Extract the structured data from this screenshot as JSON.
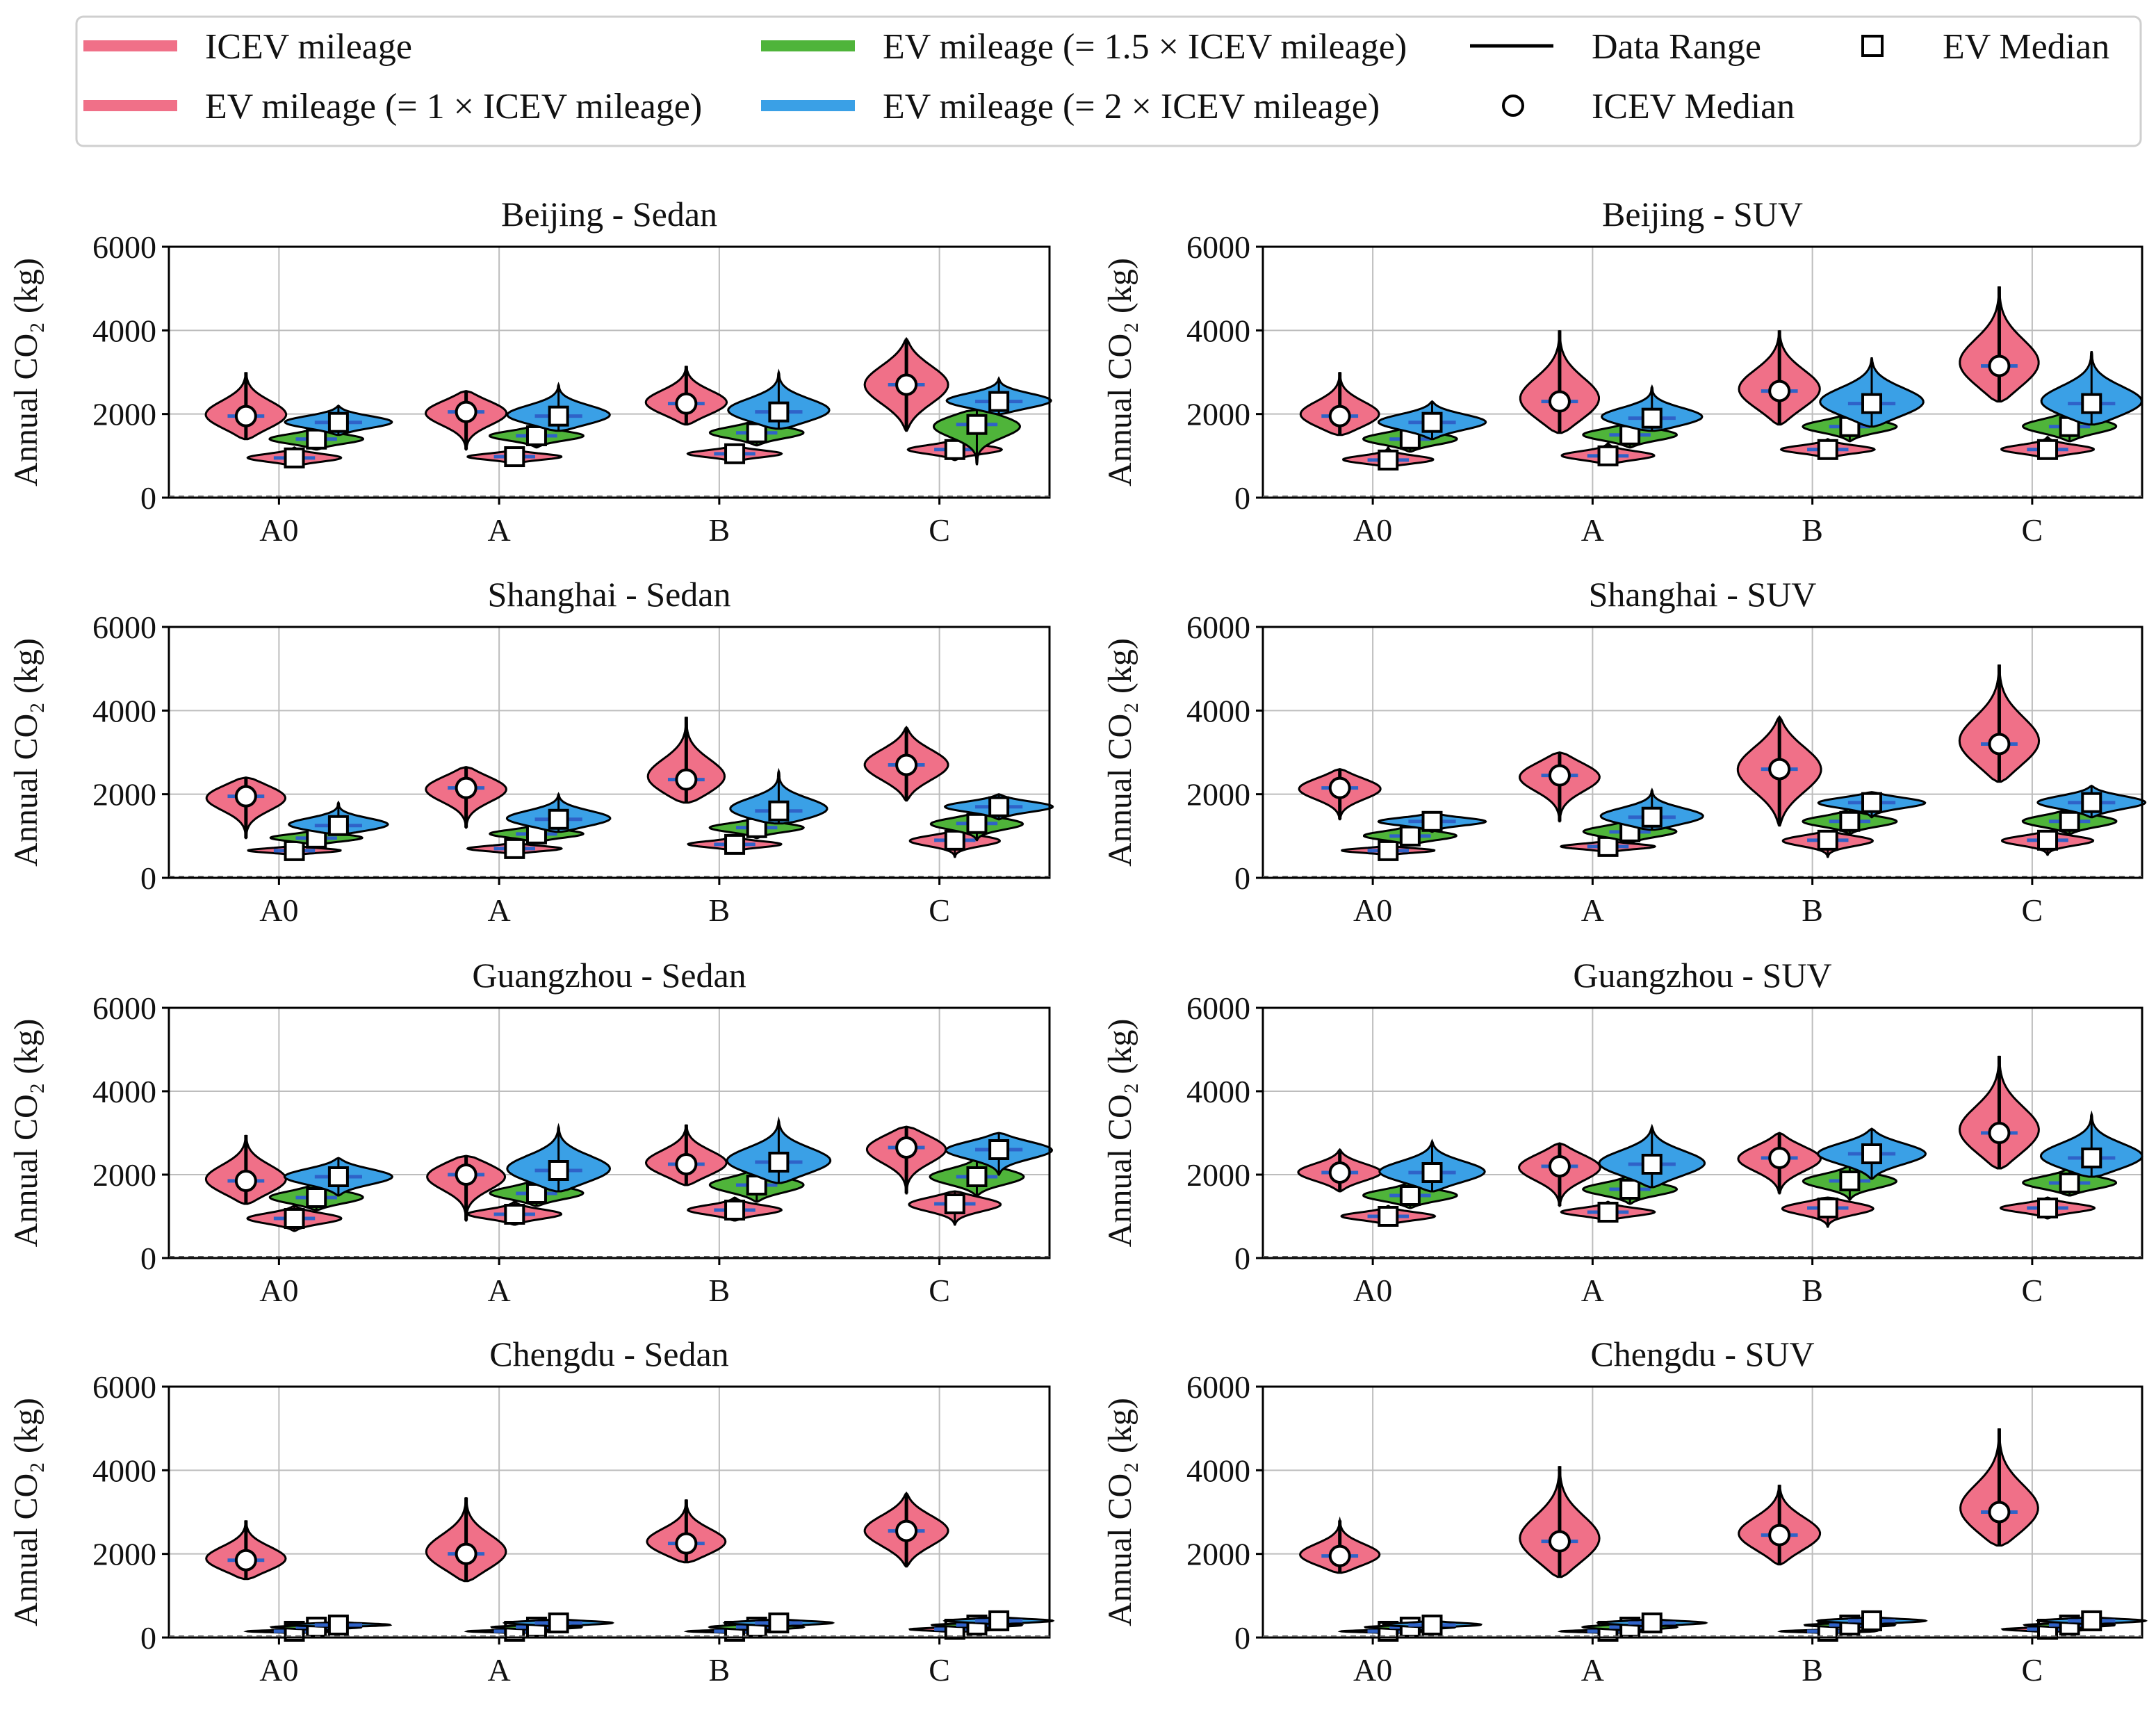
{
  "colors": {
    "icev": "#f07088",
    "ev1": "#f07088",
    "ev15": "#4fb43a",
    "ev2": "#3aa0e6",
    "median_line": "#2f62c8",
    "grid": "#bdbdbd"
  },
  "legend": {
    "items": [
      {
        "key": "icev",
        "label": "ICEV mileage",
        "kind": "patch",
        "color": "#f07088"
      },
      {
        "key": "ev1",
        "label": "EV mileage (= 1 × ICEV mileage)",
        "kind": "patch",
        "color": "#f07088"
      },
      {
        "key": "ev15",
        "label": "EV mileage (= 1.5 × ICEV mileage)",
        "kind": "patch",
        "color": "#4fb43a"
      },
      {
        "key": "ev2",
        "label": "EV mileage (= 2 × ICEV mileage)",
        "kind": "patch",
        "color": "#3aa0e6"
      },
      {
        "key": "range",
        "label": "Data Range",
        "kind": "line"
      },
      {
        "key": "icev_median",
        "label": "ICEV Median",
        "kind": "circle"
      },
      {
        "key": "ev_median",
        "label": "EV Median",
        "kind": "square"
      }
    ]
  },
  "chart_data": [
    {
      "type": "violin",
      "title": "Beijing - Sedan",
      "ylabel": "Annual CO₂ (kg)",
      "ylim": [
        0,
        6000
      ],
      "yticks": [
        0,
        2000,
        4000,
        6000
      ],
      "categories": [
        "A0",
        "A",
        "B",
        "C"
      ],
      "grid": true,
      "series": [
        {
          "name": "ICEV mileage",
          "medians": [
            1950,
            2050,
            2250,
            2700
          ],
          "ranges": [
            [
              1400,
              3000
            ],
            [
              1150,
              2550
            ],
            [
              1750,
              3150
            ],
            [
              1600,
              3800
            ]
          ]
        },
        {
          "name": "EV mileage (= 1 × ICEV mileage)",
          "medians": [
            950,
            980,
            1050,
            1150
          ],
          "ranges": [
            [
              750,
              1200
            ],
            [
              800,
              1150
            ],
            [
              850,
              1250
            ],
            [
              900,
              1400
            ]
          ]
        },
        {
          "name": "EV mileage (= 1.5 × ICEV mileage)",
          "medians": [
            1400,
            1480,
            1550,
            1750
          ],
          "ranges": [
            [
              1150,
              1700
            ],
            [
              1200,
              1750
            ],
            [
              1250,
              1900
            ],
            [
              800,
              2100
            ]
          ]
        },
        {
          "name": "EV mileage (= 2 × ICEV mileage)",
          "medians": [
            1800,
            1950,
            2050,
            2300
          ],
          "ranges": [
            [
              1500,
              2200
            ],
            [
              1600,
              2700
            ],
            [
              1650,
              3000
            ],
            [
              2000,
              2850
            ]
          ]
        }
      ]
    },
    {
      "type": "violin",
      "title": "Beijing - SUV",
      "ylabel": "Annual CO₂ (kg)",
      "ylim": [
        0,
        6000
      ],
      "yticks": [
        0,
        2000,
        4000,
        6000
      ],
      "categories": [
        "A0",
        "A",
        "B",
        "C"
      ],
      "grid": true,
      "series": [
        {
          "name": "ICEV mileage",
          "medians": [
            1950,
            2300,
            2550,
            3150
          ],
          "ranges": [
            [
              1500,
              3000
            ],
            [
              1550,
              4000
            ],
            [
              1750,
              4000
            ],
            [
              2300,
              5050
            ]
          ]
        },
        {
          "name": "EV mileage (= 1 × ICEV mileage)",
          "medians": [
            900,
            1000,
            1150,
            1150
          ],
          "ranges": [
            [
              750,
              1200
            ],
            [
              800,
              1300
            ],
            [
              950,
              1400
            ],
            [
              950,
              1450
            ]
          ]
        },
        {
          "name": "EV mileage (= 1.5 × ICEV mileage)",
          "medians": [
            1400,
            1500,
            1700,
            1700
          ],
          "ranges": [
            [
              1100,
              1750
            ],
            [
              1200,
              1850
            ],
            [
              1350,
              2050
            ],
            [
              1350,
              2150
            ]
          ]
        },
        {
          "name": "EV mileage (= 2 × ICEV mileage)",
          "medians": [
            1800,
            1900,
            2250,
            2250
          ],
          "ranges": [
            [
              1400,
              2300
            ],
            [
              1600,
              2650
            ],
            [
              1700,
              3350
            ],
            [
              1750,
              3500
            ]
          ]
        }
      ]
    },
    {
      "type": "violin",
      "title": "Shanghai - Sedan",
      "ylabel": "Annual CO₂ (kg)",
      "ylim": [
        0,
        6000
      ],
      "yticks": [
        0,
        2000,
        4000,
        6000
      ],
      "categories": [
        "A0",
        "A",
        "B",
        "C"
      ],
      "grid": true,
      "series": [
        {
          "name": "ICEV mileage",
          "medians": [
            1950,
            2150,
            2350,
            2700
          ],
          "ranges": [
            [
              950,
              2400
            ],
            [
              1200,
              2650
            ],
            [
              1800,
              3850
            ],
            [
              1850,
              3600
            ]
          ]
        },
        {
          "name": "EV mileage (= 1 × ICEV mileage)",
          "medians": [
            650,
            700,
            800,
            900
          ],
          "ranges": [
            [
              550,
              800
            ],
            [
              550,
              850
            ],
            [
              650,
              1000
            ],
            [
              500,
              1100
            ]
          ]
        },
        {
          "name": "EV mileage (= 1.5 × ICEV mileage)",
          "medians": [
            950,
            1050,
            1200,
            1300
          ],
          "ranges": [
            [
              800,
              1200
            ],
            [
              850,
              1300
            ],
            [
              950,
              1450
            ],
            [
              900,
              1550
            ]
          ]
        },
        {
          "name": "EV mileage (= 2 × ICEV mileage)",
          "medians": [
            1250,
            1400,
            1600,
            1700
          ],
          "ranges": [
            [
              1050,
              1800
            ],
            [
              1100,
              2000
            ],
            [
              1300,
              2550
            ],
            [
              1400,
              2000
            ]
          ]
        }
      ]
    },
    {
      "type": "violin",
      "title": "Shanghai - SUV",
      "ylabel": "Annual CO₂ (kg)",
      "ylim": [
        0,
        6000
      ],
      "yticks": [
        0,
        2000,
        4000,
        6000
      ],
      "categories": [
        "A0",
        "A",
        "B",
        "C"
      ],
      "grid": true,
      "series": [
        {
          "name": "ICEV mileage",
          "medians": [
            2150,
            2450,
            2600,
            3200
          ],
          "ranges": [
            [
              1400,
              2600
            ],
            [
              1350,
              3000
            ],
            [
              1250,
              3850
            ],
            [
              2300,
              5100
            ]
          ]
        },
        {
          "name": "EV mileage (= 1 × ICEV mileage)",
          "medians": [
            650,
            750,
            900,
            900
          ],
          "ranges": [
            [
              550,
              800
            ],
            [
              600,
              900
            ],
            [
              500,
              1100
            ],
            [
              550,
              1100
            ]
          ]
        },
        {
          "name": "EV mileage (= 1.5 × ICEV mileage)",
          "medians": [
            1000,
            1100,
            1350,
            1350
          ],
          "ranges": [
            [
              800,
              1300
            ],
            [
              850,
              1450
            ],
            [
              1050,
              1650
            ],
            [
              1050,
              1700
            ]
          ]
        },
        {
          "name": "EV mileage (= 2 × ICEV mileage)",
          "medians": [
            1350,
            1450,
            1800,
            1800
          ],
          "ranges": [
            [
              1100,
              1550
            ],
            [
              1150,
              2100
            ],
            [
              1450,
              2050
            ],
            [
              1450,
              2200
            ]
          ]
        }
      ]
    },
    {
      "type": "violin",
      "title": "Guangzhou - Sedan",
      "ylabel": "Annual CO₂ (kg)",
      "ylim": [
        0,
        6000
      ],
      "yticks": [
        0,
        2000,
        4000,
        6000
      ],
      "categories": [
        "A0",
        "A",
        "B",
        "C"
      ],
      "grid": true,
      "series": [
        {
          "name": "ICEV mileage",
          "medians": [
            1850,
            2000,
            2250,
            2650
          ],
          "ranges": [
            [
              1300,
              2950
            ],
            [
              900,
              2450
            ],
            [
              1750,
              3200
            ],
            [
              1550,
              3150
            ]
          ]
        },
        {
          "name": "EV mileage (= 1 × ICEV mileage)",
          "medians": [
            950,
            1050,
            1150,
            1300
          ],
          "ranges": [
            [
              650,
              1250
            ],
            [
              800,
              1350
            ],
            [
              900,
              1450
            ],
            [
              800,
              1600
            ]
          ]
        },
        {
          "name": "EV mileage (= 1.5 × ICEV mileage)",
          "medians": [
            1450,
            1550,
            1750,
            1950
          ],
          "ranges": [
            [
              1150,
              1850
            ],
            [
              1250,
              1950
            ],
            [
              1350,
              2200
            ],
            [
              1500,
              2400
            ]
          ]
        },
        {
          "name": "EV mileage (= 2 × ICEV mileage)",
          "medians": [
            1950,
            2100,
            2300,
            2600
          ],
          "ranges": [
            [
              1500,
              2400
            ],
            [
              1600,
              3150
            ],
            [
              1800,
              3300
            ],
            [
              2000,
              3000
            ]
          ]
        }
      ]
    },
    {
      "type": "violin",
      "title": "Guangzhou - SUV",
      "ylabel": "Annual CO₂ (kg)",
      "ylim": [
        0,
        6000
      ],
      "yticks": [
        0,
        2000,
        4000,
        6000
      ],
      "categories": [
        "A0",
        "A",
        "B",
        "C"
      ],
      "grid": true,
      "series": [
        {
          "name": "ICEV mileage",
          "medians": [
            2050,
            2200,
            2400,
            3000
          ],
          "ranges": [
            [
              1600,
              2600
            ],
            [
              1250,
              2750
            ],
            [
              1550,
              3000
            ],
            [
              2150,
              4850
            ]
          ]
        },
        {
          "name": "EV mileage (= 1 × ICEV mileage)",
          "medians": [
            1000,
            1100,
            1200,
            1200
          ],
          "ranges": [
            [
              800,
              1250
            ],
            [
              900,
              1350
            ],
            [
              750,
              1450
            ],
            [
              950,
              1450
            ]
          ]
        },
        {
          "name": "EV mileage (= 1.5 × ICEV mileage)",
          "medians": [
            1500,
            1650,
            1850,
            1800
          ],
          "ranges": [
            [
              1200,
              1850
            ],
            [
              1300,
              2000
            ],
            [
              1400,
              2200
            ],
            [
              1500,
              2200
            ]
          ]
        },
        {
          "name": "EV mileage (= 2 × ICEV mileage)",
          "medians": [
            2050,
            2250,
            2500,
            2400
          ],
          "ranges": [
            [
              1600,
              2800
            ],
            [
              1700,
              3150
            ],
            [
              1900,
              3100
            ],
            [
              1950,
              3450
            ]
          ]
        }
      ]
    },
    {
      "type": "violin",
      "title": "Chengdu - Sedan",
      "ylabel": "Annual CO₂ (kg)",
      "ylim": [
        0,
        6000
      ],
      "yticks": [
        0,
        2000,
        4000,
        6000
      ],
      "categories": [
        "A0",
        "A",
        "B",
        "C"
      ],
      "grid": true,
      "series": [
        {
          "name": "ICEV mileage",
          "medians": [
            1850,
            2000,
            2250,
            2550
          ],
          "ranges": [
            [
              1400,
              2800
            ],
            [
              1350,
              3350
            ],
            [
              1800,
              3300
            ],
            [
              1700,
              3450
            ]
          ]
        },
        {
          "name": "EV mileage (= 1 × ICEV mileage)",
          "medians": [
            150,
            150,
            150,
            200
          ],
          "ranges": [
            [
              100,
              200
            ],
            [
              100,
              200
            ],
            [
              100,
              200
            ],
            [
              100,
              250
            ]
          ]
        },
        {
          "name": "EV mileage (= 1.5 × ICEV mileage)",
          "medians": [
            250,
            250,
            250,
            300
          ],
          "ranges": [
            [
              150,
              300
            ],
            [
              150,
              300
            ],
            [
              150,
              350
            ],
            [
              200,
              350
            ]
          ]
        },
        {
          "name": "EV mileage (= 2 × ICEV mileage)",
          "medians": [
            300,
            350,
            350,
            400
          ],
          "ranges": [
            [
              250,
              400
            ],
            [
              250,
              450
            ],
            [
              250,
              450
            ],
            [
              300,
              500
            ]
          ]
        }
      ]
    },
    {
      "type": "violin",
      "title": "Chengdu - SUV",
      "ylabel": "Annual CO₂ (kg)",
      "ylim": [
        0,
        6000
      ],
      "yticks": [
        0,
        2000,
        4000,
        6000
      ],
      "categories": [
        "A0",
        "A",
        "B",
        "C"
      ],
      "grid": true,
      "series": [
        {
          "name": "ICEV mileage",
          "medians": [
            1950,
            2300,
            2450,
            3000
          ],
          "ranges": [
            [
              1550,
              2800
            ],
            [
              1450,
              4100
            ],
            [
              1750,
              3650
            ],
            [
              2200,
              5000
            ]
          ]
        },
        {
          "name": "EV mileage (= 1 × ICEV mileage)",
          "medians": [
            150,
            150,
            150,
            200
          ],
          "ranges": [
            [
              100,
              200
            ],
            [
              100,
              200
            ],
            [
              100,
              200
            ],
            [
              100,
              250
            ]
          ]
        },
        {
          "name": "EV mileage (= 1.5 × ICEV mileage)",
          "medians": [
            250,
            250,
            300,
            300
          ],
          "ranges": [
            [
              150,
              300
            ],
            [
              150,
              350
            ],
            [
              200,
              350
            ],
            [
              200,
              350
            ]
          ]
        },
        {
          "name": "EV mileage (= 2 × ICEV mileage)",
          "medians": [
            300,
            350,
            400,
            400
          ],
          "ranges": [
            [
              250,
              450
            ],
            [
              250,
              450
            ],
            [
              300,
              500
            ],
            [
              300,
              500
            ]
          ]
        }
      ]
    }
  ]
}
